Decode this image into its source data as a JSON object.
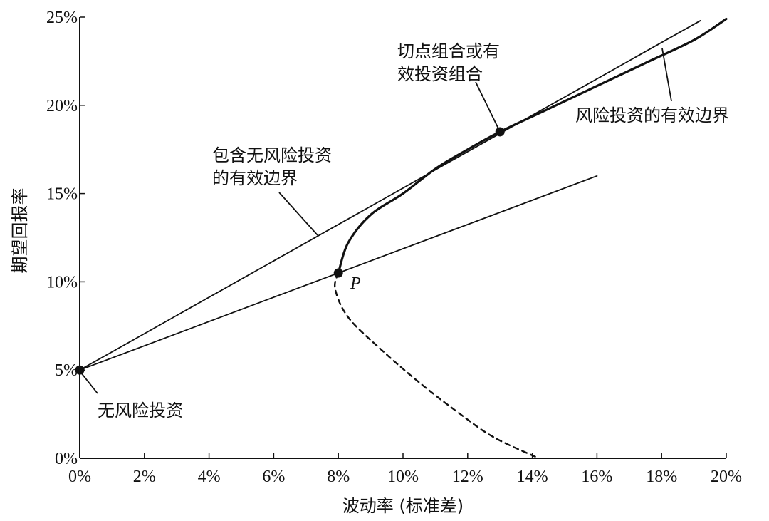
{
  "chart_data": {
    "type": "line",
    "title": "",
    "xlabel": "波动率 (标准差)",
    "ylabel": "期望回报率",
    "xlim": [
      0,
      20
    ],
    "ylim": [
      0,
      25
    ],
    "x_ticks": [
      "0%",
      "2%",
      "4%",
      "6%",
      "8%",
      "10%",
      "12%",
      "14%",
      "16%",
      "18%",
      "20%"
    ],
    "y_ticks": [
      "0%",
      "5%",
      "10%",
      "15%",
      "20%",
      "25%"
    ],
    "grid": false,
    "series": [
      {
        "style": "solid-bold",
        "points": [
          [
            8.0,
            10.5
          ],
          [
            8.3,
            12.2
          ],
          [
            9.0,
            13.8
          ],
          [
            10.0,
            15.0
          ],
          [
            11.0,
            16.4
          ],
          [
            12.0,
            17.5
          ],
          [
            13.0,
            18.5
          ],
          [
            14.5,
            19.8
          ],
          [
            16.0,
            21.1
          ],
          [
            17.5,
            22.4
          ],
          [
            19.0,
            23.7
          ],
          [
            20.0,
            24.9
          ]
        ]
      },
      {
        "style": "dashed",
        "points": [
          [
            8.0,
            10.5
          ],
          [
            7.9,
            9.6
          ],
          [
            8.3,
            8.0
          ],
          [
            9.3,
            6.2
          ],
          [
            10.5,
            4.3
          ],
          [
            11.7,
            2.6
          ],
          [
            12.8,
            1.2
          ],
          [
            14.2,
            0.0
          ]
        ]
      },
      {
        "style": "solid-thin",
        "points": [
          [
            0,
            5
          ],
          [
            19.2,
            24.8
          ]
        ]
      },
      {
        "style": "solid-thin",
        "points": [
          [
            0,
            5
          ],
          [
            16.0,
            16.0
          ]
        ]
      }
    ],
    "markers": [
      {
        "x": 0,
        "y": 5
      },
      {
        "x": 8.0,
        "y": 10.5
      },
      {
        "x": 13.0,
        "y": 18.5
      }
    ],
    "annotations": [
      {
        "lines": [
          "切点组合或有",
          "效投资组合"
        ]
      },
      {
        "lines": [
          "风险投资的有效边界"
        ]
      },
      {
        "lines": [
          "包含无风险投资",
          "的有效边界"
        ]
      },
      {
        "lines": [
          "无风险投资"
        ]
      },
      {
        "lines": [
          "P"
        ]
      }
    ]
  }
}
